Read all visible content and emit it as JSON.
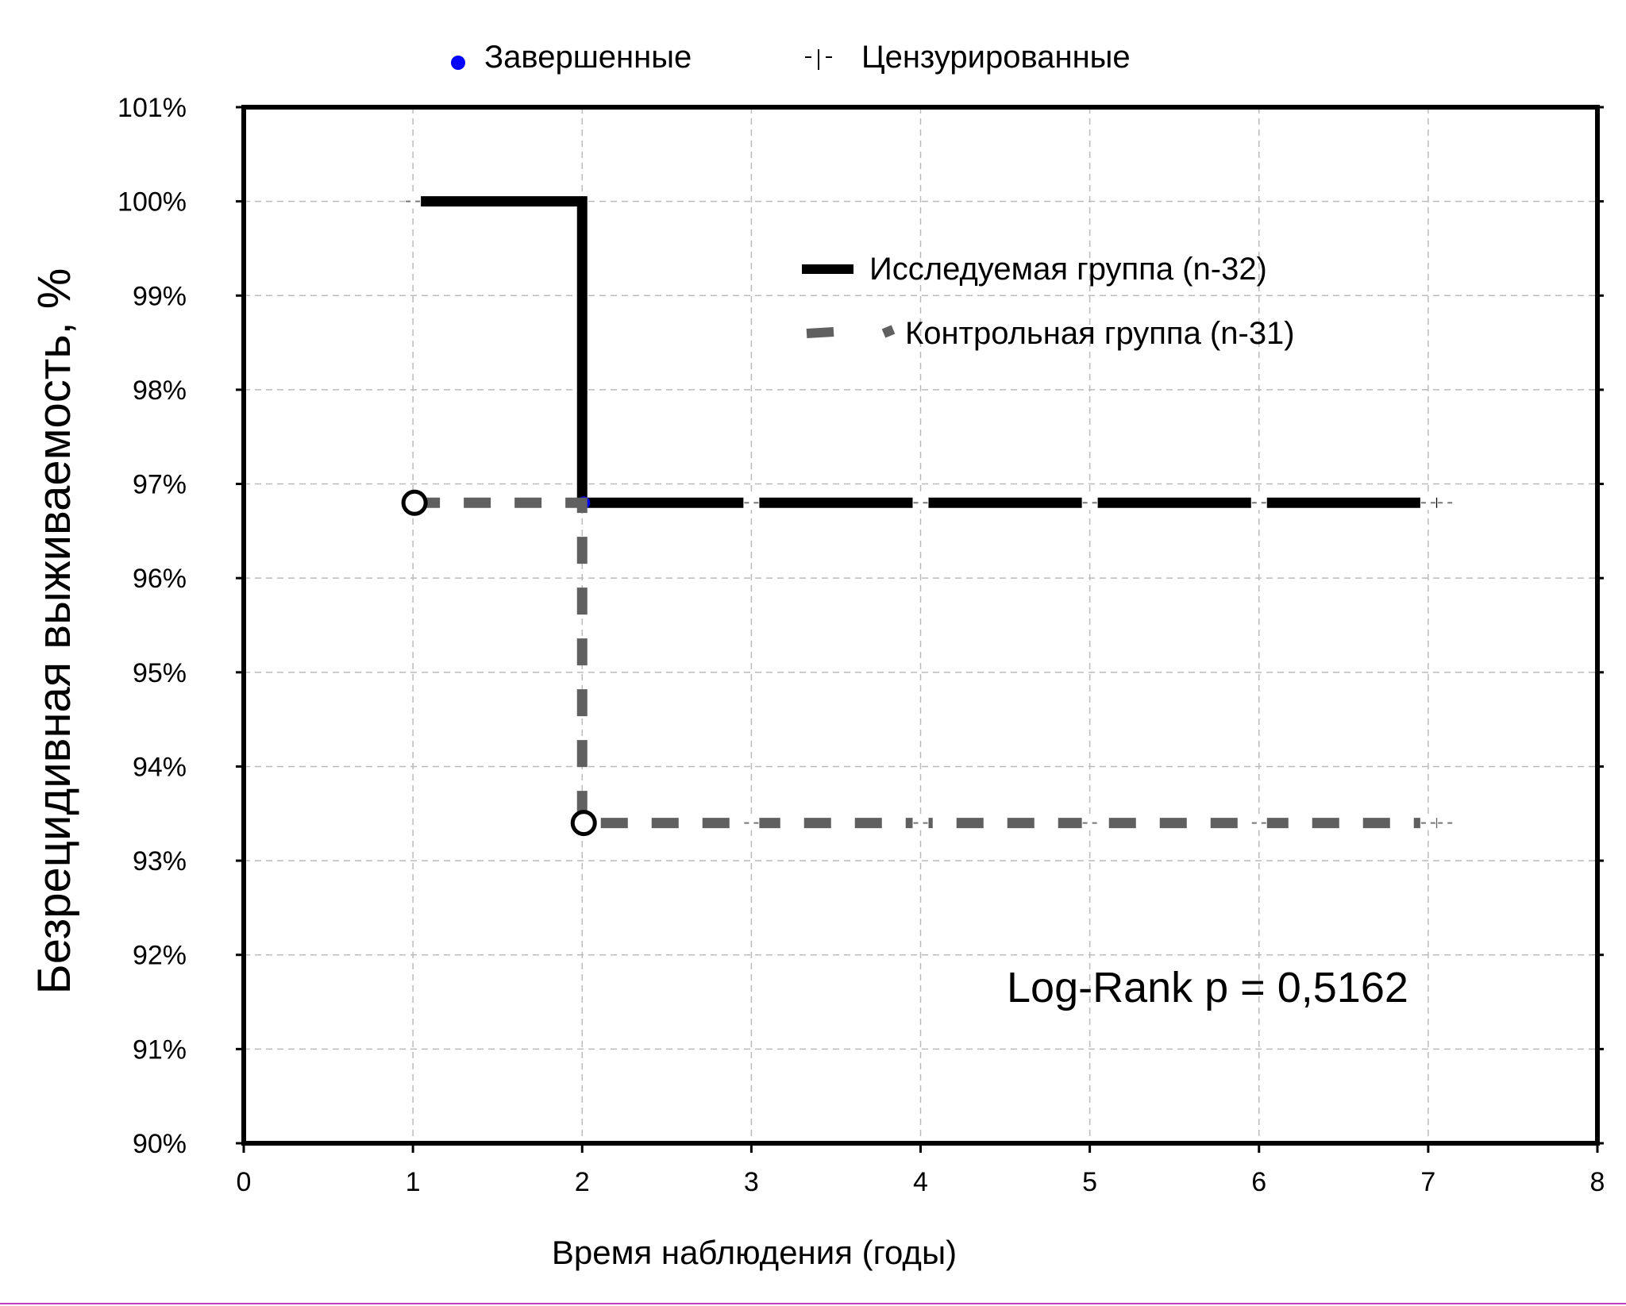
{
  "chart_data": {
    "type": "line",
    "subtype": "kaplan-meier",
    "title": "",
    "xlabel": "Время наблюдения (годы)",
    "ylabel": "Безрецидивная выживаемость, %",
    "xlim": [
      0,
      8
    ],
    "ylim": [
      90,
      101
    ],
    "x_ticks": [
      "0",
      "1",
      "2",
      "3",
      "4",
      "5",
      "6",
      "7",
      "8"
    ],
    "y_ticks": [
      "90%",
      "91%",
      "92%",
      "93%",
      "94%",
      "95%",
      "96%",
      "97%",
      "98%",
      "99%",
      "100%",
      "101%"
    ],
    "grid": true,
    "marker_legend": [
      {
        "label": "Завершенные",
        "marker": "filled-circle",
        "color": "#0000ff"
      },
      {
        "label": "Цензурированные",
        "marker": "plus",
        "color": "#000000"
      }
    ],
    "series": [
      {
        "name": "Исследуемая группа (n-32)",
        "color": "#000000",
        "style": "solid",
        "steps": [
          [
            1,
            100
          ],
          [
            2,
            100
          ],
          [
            2,
            96.8
          ],
          [
            7.1,
            96.8
          ]
        ],
        "completed": [
          [
            2,
            96.8
          ]
        ],
        "censored": [
          [
            1,
            100
          ],
          [
            3,
            96.8
          ],
          [
            4,
            96.8
          ],
          [
            5,
            96.8
          ],
          [
            6,
            96.8
          ],
          [
            7,
            96.8
          ],
          [
            7.1,
            96.8
          ]
        ]
      },
      {
        "name": "Контрольная группа (n-31)",
        "color": "#606060",
        "style": "dashed",
        "steps": [
          [
            1,
            96.8
          ],
          [
            2,
            96.8
          ],
          [
            2,
            93.4
          ],
          [
            7.1,
            93.4
          ]
        ],
        "completed": [
          [
            1,
            96.8
          ],
          [
            2,
            93.4
          ]
        ],
        "censored": [
          [
            3,
            93.4
          ],
          [
            4,
            93.4
          ],
          [
            5,
            93.4
          ],
          [
            6,
            93.4
          ],
          [
            7,
            93.4
          ],
          [
            7.1,
            93.4
          ]
        ]
      }
    ],
    "annotation": "Log-Rank p = 0,5162"
  }
}
